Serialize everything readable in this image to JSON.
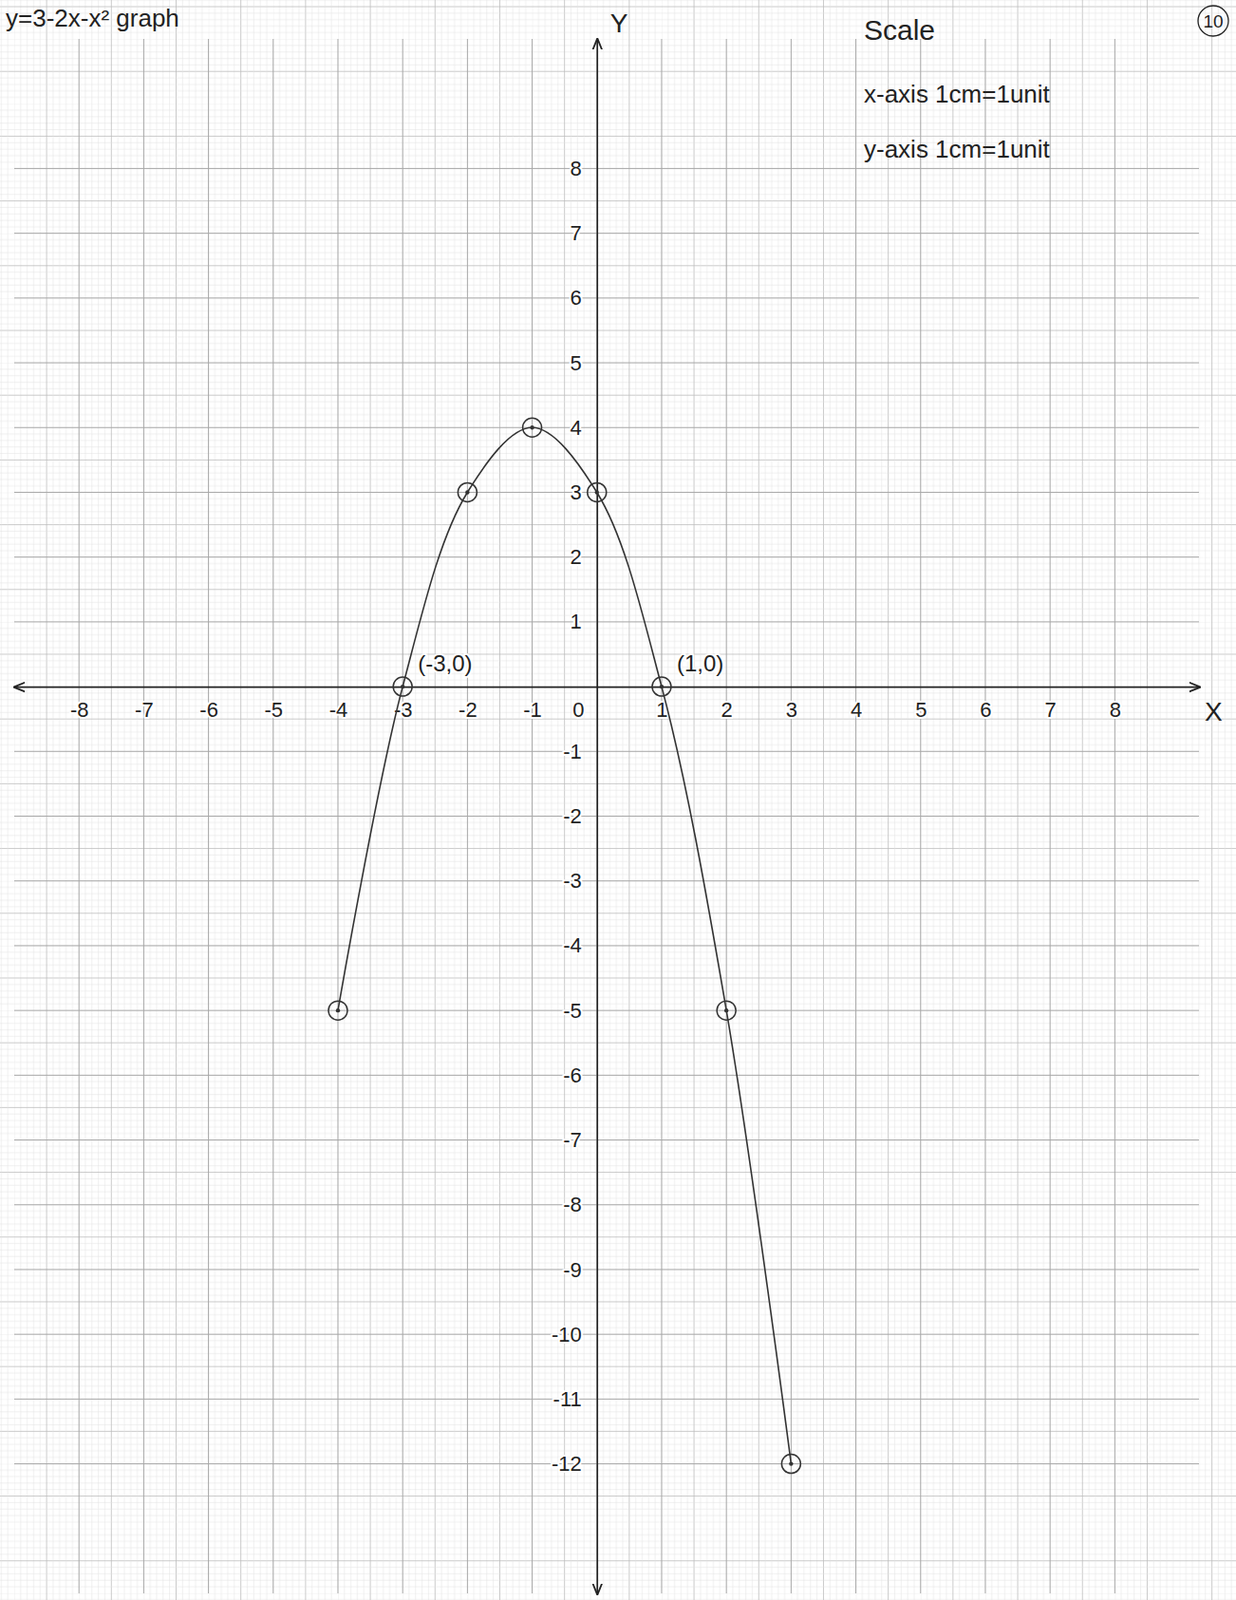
{
  "chart_data": {
    "type": "line",
    "title": "y=3-2x-x² graph",
    "notes": [
      "Scale",
      "x-axis 1cm=1unit",
      "y-axis 1cm=1unit"
    ],
    "page_number": "10",
    "x_label": "X",
    "y_label": "Y",
    "x": [
      -4,
      -3,
      -2,
      -1,
      0,
      1,
      2,
      3
    ],
    "values": [
      -5,
      0,
      3,
      4,
      3,
      0,
      -5,
      -12
    ],
    "marker": "circle",
    "color": "#333333",
    "grid": true,
    "xlim": [
      -9,
      9.3
    ],
    "ylim": [
      -14,
      10
    ],
    "xticks": [
      -8,
      -7,
      -6,
      -5,
      -4,
      -3,
      -2,
      -1,
      0,
      1,
      2,
      3,
      4,
      5,
      6,
      7,
      8
    ],
    "yticks": [
      -12,
      -11,
      -10,
      -9,
      -8,
      -7,
      -6,
      -5,
      -4,
      -3,
      -2,
      -1,
      1,
      2,
      3,
      4,
      5,
      6,
      7,
      8
    ],
    "annotations": [
      {
        "text": "(-3,0)",
        "x": -3,
        "y": 0
      },
      {
        "text": "(1,0)",
        "x": 1,
        "y": 0
      }
    ]
  }
}
